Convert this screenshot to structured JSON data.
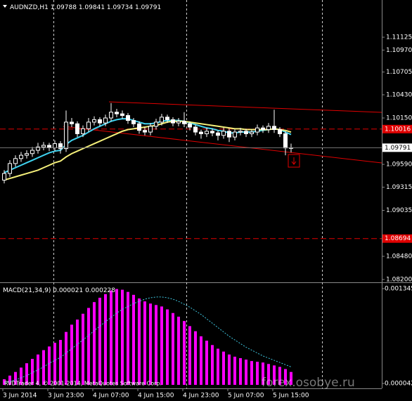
{
  "chart_data": {
    "type": "candlestick",
    "title": "AUDNZD,H1",
    "categories": [
      "3 Jun 2014",
      null,
      null,
      null,
      null,
      null,
      null,
      null,
      "3 Jun 23:00",
      null,
      null,
      null,
      null,
      null,
      null,
      null,
      "4 Jun 07:00",
      null,
      null,
      null,
      null,
      null,
      null,
      null,
      "4 Jun 15:00",
      null,
      null,
      null,
      null,
      null,
      null,
      null,
      "4 Jun 23:00",
      null,
      null,
      null,
      null,
      null,
      null,
      null,
      "5 Jun 07:00",
      null,
      null,
      null,
      null,
      null,
      null,
      null,
      "5 Jun 15:00",
      null,
      null,
      null
    ],
    "open": [
      1.094,
      1.0948,
      1.096,
      1.0966,
      1.097,
      1.0972,
      1.0976,
      1.098,
      1.0982,
      1.0979,
      1.0984,
      1.0978,
      1.101,
      1.1008,
      1.0996,
      1.1002,
      1.101,
      1.1013,
      1.1009,
      1.1015,
      1.1022,
      1.102,
      1.1018,
      1.1012,
      1.1008,
      1.1,
      1.0998,
      1.1005,
      1.101,
      1.1016,
      1.1013,
      1.1009,
      1.1011,
      1.1008,
      1.1004,
      1.0998,
      1.0996,
      1.0999,
      1.0997,
      1.0994,
      1.0999,
      1.0992,
      1.0998,
      1.0999,
      1.0996,
      1.0998,
      1.1003,
      1.1001,
      1.1005,
      1.1001,
      1.0996,
      1.09788
    ],
    "high": [
      1.0952,
      1.0964,
      1.097,
      1.0974,
      1.0976,
      1.098,
      1.0985,
      1.0986,
      1.0985,
      1.0988,
      1.0987,
      1.1024,
      1.1015,
      1.1011,
      1.1006,
      1.1015,
      1.1017,
      1.1016,
      1.1019,
      1.1033,
      1.1026,
      1.1024,
      1.1021,
      1.1015,
      1.1011,
      1.1004,
      1.1009,
      1.1014,
      1.102,
      1.1019,
      1.1016,
      1.1015,
      1.1022,
      1.1011,
      1.1007,
      1.1001,
      1.1003,
      1.1002,
      1.1,
      1.1003,
      1.1002,
      1.1001,
      1.1003,
      1.1002,
      1.1001,
      1.1007,
      1.1006,
      1.1009,
      1.1025,
      1.1004,
      1.0999,
      1.09841
    ],
    "low": [
      1.0936,
      1.0944,
      1.0956,
      1.0962,
      1.0966,
      1.0968,
      1.0972,
      1.0976,
      1.0975,
      1.0975,
      1.0972,
      1.0974,
      1.1004,
      1.0992,
      1.0992,
      1.0998,
      1.1006,
      1.1005,
      1.1005,
      1.1011,
      1.1016,
      1.1014,
      1.1008,
      1.1004,
      1.0996,
      1.0994,
      1.0994,
      1.1001,
      1.1006,
      1.1009,
      1.1005,
      1.1005,
      1.1004,
      1.1,
      1.0994,
      1.099,
      1.0992,
      1.0993,
      1.0988,
      1.099,
      1.0986,
      1.0988,
      1.0994,
      1.0992,
      1.0992,
      1.0994,
      1.0997,
      1.0997,
      1.0997,
      1.0992,
      1.097,
      1.09734
    ],
    "close": [
      1.0948,
      1.096,
      1.0966,
      1.097,
      1.0972,
      1.0976,
      1.098,
      1.0982,
      1.0979,
      1.0984,
      1.0978,
      1.101,
      1.1008,
      1.0996,
      1.1002,
      1.101,
      1.1013,
      1.1009,
      1.1015,
      1.1022,
      1.102,
      1.1018,
      1.1012,
      1.1008,
      1.1,
      1.0998,
      1.1005,
      1.101,
      1.1016,
      1.1013,
      1.1009,
      1.1011,
      1.1008,
      1.1004,
      1.0998,
      1.0996,
      1.0999,
      1.0997,
      1.0994,
      1.0999,
      1.0992,
      1.0998,
      1.0999,
      1.0996,
      1.0998,
      1.1003,
      1.1001,
      1.1005,
      1.1001,
      1.0996,
      1.09788,
      1.09791
    ],
    "candle_color": "#ffffff",
    "series": [
      {
        "color": "#3fd3f0",
        "values": [
          1.0949,
          1.0952,
          1.0955,
          1.0958,
          1.0961,
          1.0964,
          1.0967,
          1.097,
          1.0973,
          1.0975,
          1.0976,
          1.0983,
          1.0988,
          1.0991,
          1.0994,
          1.0998,
          1.1002,
          1.1005,
          1.1008,
          1.1011,
          1.1013,
          1.1014,
          1.1014,
          1.1012,
          1.101,
          1.1008,
          1.1008,
          1.1009,
          1.1011,
          1.1012,
          1.1012,
          1.1012,
          1.1011,
          1.1009,
          1.1007,
          1.1005,
          1.1003,
          1.1002,
          1.1,
          1.0999,
          1.0997,
          1.0997,
          1.0998,
          1.0998,
          1.0998,
          1.0999,
          1.1,
          1.1001,
          1.1002,
          1.1001,
          1.0998,
          1.0995
        ]
      },
      {
        "color": "#f5f07a",
        "values": [
          1.094,
          1.0942,
          1.0944,
          1.0946,
          1.0948,
          1.095,
          1.0952,
          1.0955,
          1.0958,
          1.0961,
          1.0963,
          1.0968,
          1.0972,
          1.0975,
          1.0978,
          1.0981,
          1.0984,
          1.0987,
          1.099,
          1.0993,
          1.0996,
          1.0999,
          1.1001,
          1.1002,
          1.1003,
          1.1004,
          1.1005,
          1.1006,
          1.1008,
          1.101,
          1.1011,
          1.1011,
          1.1011,
          1.101,
          1.1009,
          1.1008,
          1.1007,
          1.1006,
          1.1005,
          1.1004,
          1.1003,
          1.1002,
          1.1002,
          1.1001,
          1.1001,
          1.1001,
          1.1001,
          1.1001,
          1.1002,
          1.1001,
          1.1,
          1.0998
        ]
      }
    ],
    "ylim": [
      1.08183,
      1.11532
    ],
    "yticks": [
      1.11125,
      {
        "value": 1.1097,
        "label": "1.10970"
      },
      1.10705,
      {
        "value": 1.1043,
        "label": "1.10430"
      },
      {
        "value": 1.1015,
        "label": "1.10150"
      },
      {
        "value": 1.0959,
        "label": "1.09590"
      },
      1.09315,
      1.09035,
      {
        "value": 1.0848,
        "label": "1.08480"
      },
      {
        "value": 1.082,
        "label": "1.08200"
      }
    ],
    "hlines": [
      1.10016,
      1.08694
    ],
    "hline_color": "#e00000",
    "macd": {
      "label": "MACD(21,34,9)",
      "label_values": [
        2.1e-05,
        0.000228
      ],
      "color": "#ff00ff",
      "values": [
        0.0001,
        0.00015,
        0.0002,
        0.00026,
        0.00032,
        0.00038,
        0.00044,
        0.0005,
        0.00055,
        0.0006,
        0.00064,
        0.00075,
        0.00085,
        0.00092,
        0.001,
        0.00108,
        0.00116,
        0.00122,
        0.00127,
        0.00132,
        0.00134,
        0.00133,
        0.0013,
        0.00126,
        0.00121,
        0.00117,
        0.00114,
        0.00112,
        0.0011,
        0.00106,
        0.00101,
        0.00096,
        0.0009,
        0.00083,
        0.00076,
        0.00069,
        0.00063,
        0.00057,
        0.00052,
        0.00048,
        0.00044,
        0.00041,
        0.00039,
        0.00037,
        0.00035,
        0.00034,
        0.00033,
        0.00031,
        0.00029,
        0.00027,
        0.00024,
        0.0002
      ],
      "signal_color": "#3fc6e0",
      "signal": [
        5e-05,
        7e-05,
        9e-05,
        0.00012,
        0.00015,
        0.00019,
        0.00023,
        0.00027,
        0.00032,
        0.00036,
        0.0004,
        0.00046,
        0.00052,
        0.00058,
        0.00064,
        0.0007,
        0.00077,
        0.00083,
        0.00089,
        0.00095,
        0.00101,
        0.00106,
        0.0011,
        0.00114,
        0.00117,
        0.0012,
        0.00122,
        0.00123,
        0.00123,
        0.00122,
        0.0012,
        0.00117,
        0.00113,
        0.00109,
        0.00104,
        0.00099,
        0.00093,
        0.00087,
        0.00081,
        0.00075,
        0.00069,
        0.00064,
        0.00059,
        0.00054,
        0.0005,
        0.00046,
        0.00042,
        0.00039,
        0.00036,
        0.00033,
        0.0003,
        0.00027
      ],
      "ylim": [
        2.3e-05,
        0.001403
      ],
      "yticks": [
        0.001345,
        4.2e-05
      ]
    },
    "copyright": "RVDTrader 4, © 2001-2014, MetaQuotes Software Corp.",
    "watermark": "forex.osobye.ru"
  }
}
